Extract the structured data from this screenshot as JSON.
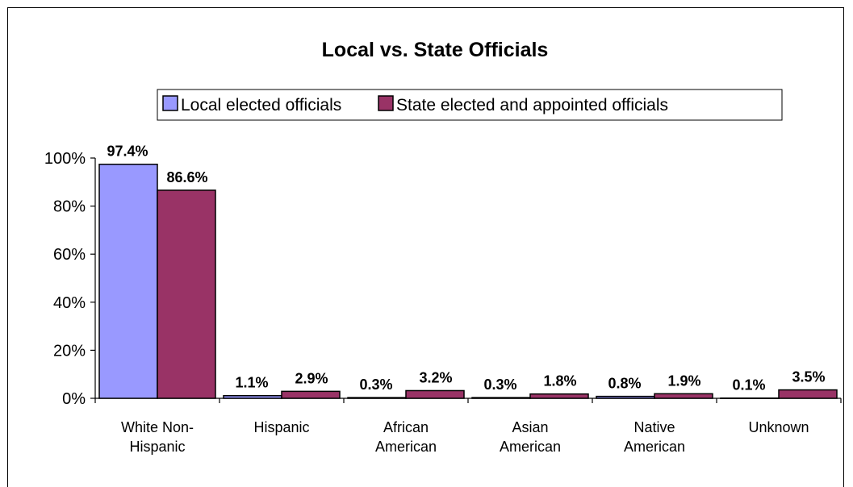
{
  "chart_data": {
    "type": "bar",
    "title": "Local vs. State Officials",
    "categories": [
      [
        "White Non-",
        "Hispanic"
      ],
      [
        "Hispanic"
      ],
      [
        "African",
        "American"
      ],
      [
        "Asian",
        "American"
      ],
      [
        "Native",
        "American"
      ],
      [
        "Unknown"
      ]
    ],
    "series": [
      {
        "name": "Local elected officials",
        "color": "#9999ff",
        "values": [
          97.4,
          1.1,
          0.3,
          0.3,
          0.8,
          0.1
        ],
        "labels": [
          "97.4%",
          "1.1%",
          "0.3%",
          "0.3%",
          "0.8%",
          "0.1%"
        ]
      },
      {
        "name": "State elected and appointed officials",
        "color": "#993366",
        "values": [
          86.6,
          2.9,
          3.2,
          1.8,
          1.9,
          3.5
        ],
        "labels": [
          "86.6%",
          "2.9%",
          "3.2%",
          "1.8%",
          "1.9%",
          "3.5%"
        ]
      }
    ],
    "y_ticks": [
      "0%",
      "20%",
      "40%",
      "60%",
      "80%",
      "100%"
    ],
    "ylim": [
      0,
      100
    ],
    "xlabel": "",
    "ylabel": "",
    "grid": false,
    "legend_position": "top"
  }
}
